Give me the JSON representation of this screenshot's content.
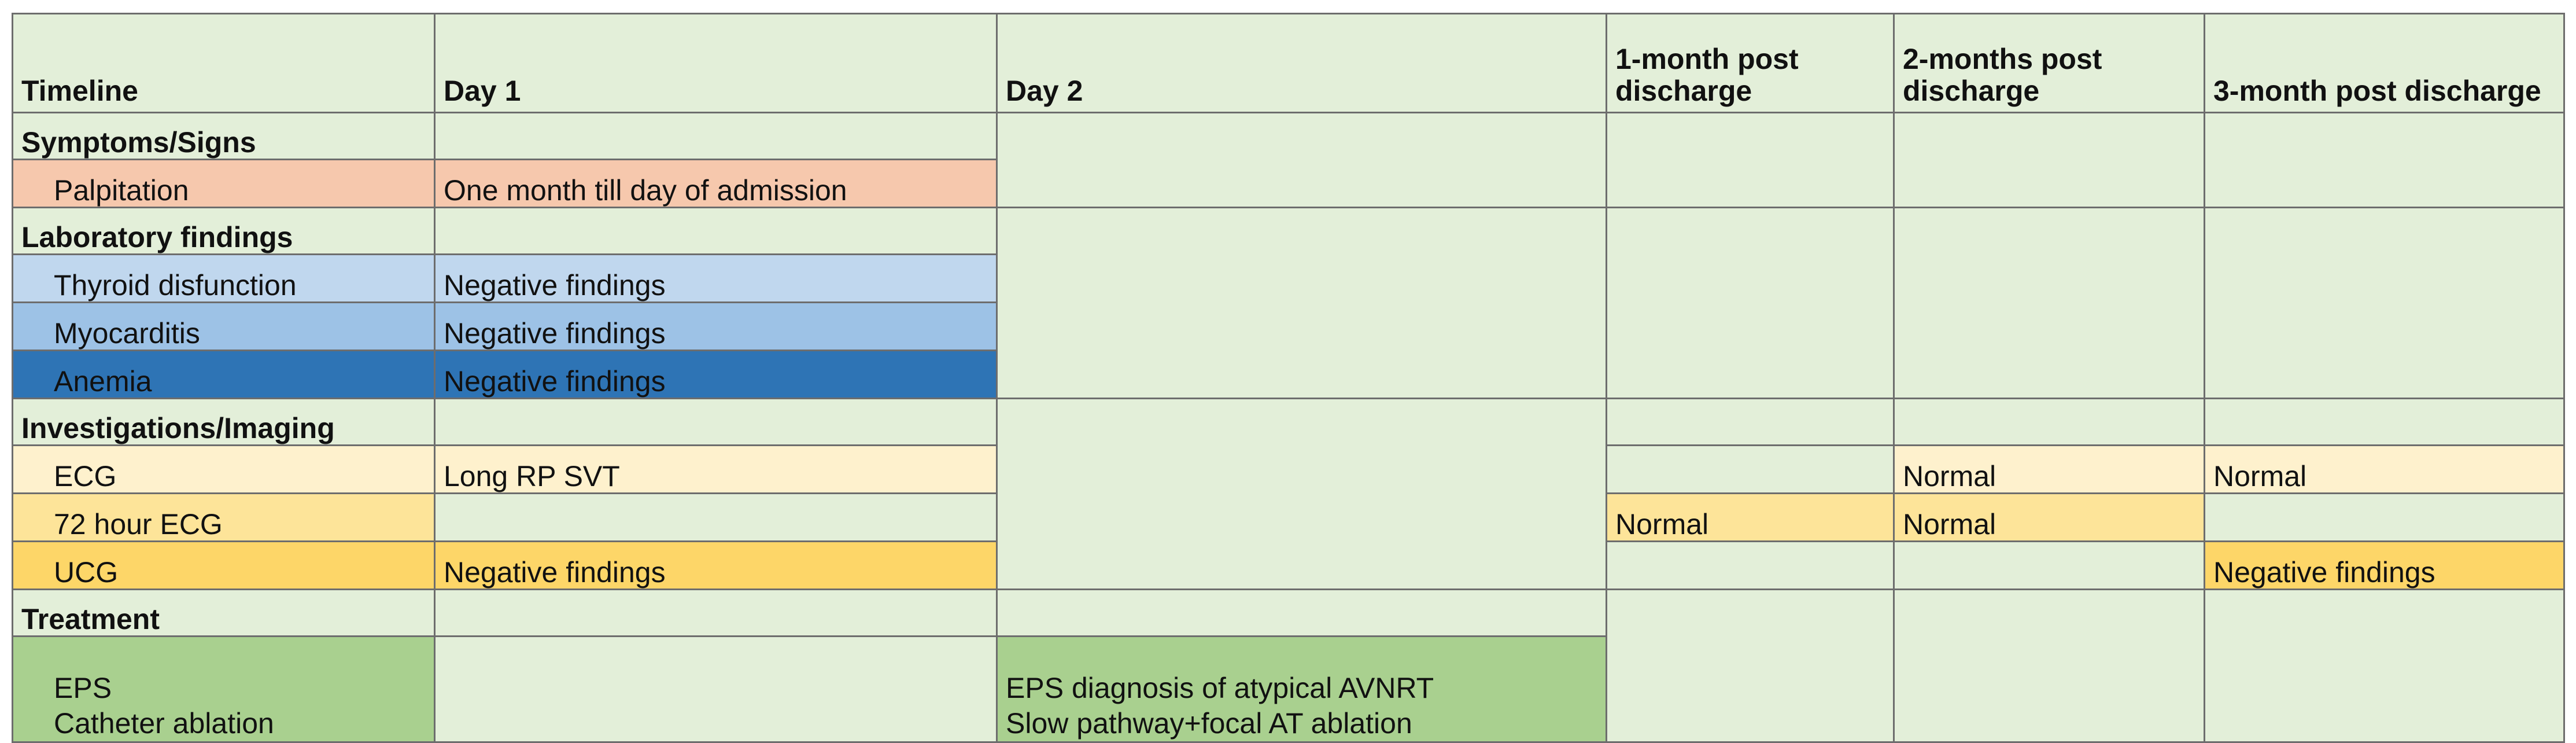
{
  "headers": {
    "timeline": "Timeline",
    "day1": "Day 1",
    "day2": "Day 2",
    "m1": "1-month post discharge",
    "m2": "2-months post discharge",
    "m3": "3-month post discharge"
  },
  "symptoms": {
    "label": "Symptoms/Signs",
    "palpitation": {
      "label": "Palpitation",
      "day1": "One month till day  of admission"
    }
  },
  "labs": {
    "label": "Laboratory findings",
    "thyroid": {
      "label": "Thyroid disfunction",
      "day1": "Negative findings"
    },
    "myocarditis": {
      "label": "Myocarditis",
      "day1": "Negative findings"
    },
    "anemia": {
      "label": "Anemia",
      "day1": "Negative findings"
    }
  },
  "investigations": {
    "label": "Investigations/Imaging",
    "ecg": {
      "label": "ECG",
      "day1": "Long RP SVT",
      "m2": "Normal",
      "m3": "Normal"
    },
    "holter": {
      "label": "72 hour ECG",
      "m1": "Normal",
      "m2": "Normal"
    },
    "ucg": {
      "label": "UCG",
      "day1": "Negative findings",
      "m3": "Negative findings"
    }
  },
  "treatment": {
    "label": "Treatment",
    "eps": {
      "label": "EPS",
      "day2": "EPS diagnosis of atypical AVNRT"
    },
    "ablation": {
      "label": "Catheter ablation",
      "day2": "Slow pathway+focal AT ablation"
    }
  },
  "colors": {
    "background": "#e3efd9",
    "symptoms": "#f6c8ad",
    "thyroid": "#c0d7ee",
    "myocarditis": "#9dc2e6",
    "anemia": "#2e74b5",
    "ecg": "#fef1cd",
    "holter": "#fde499",
    "ucg": "#fdd668",
    "treatment": "#a9d08f"
  }
}
